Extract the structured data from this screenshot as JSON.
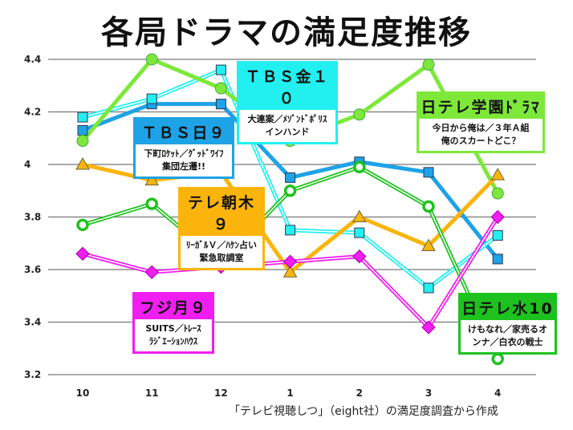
{
  "title": "各局ドラマの満足度推移",
  "source_note": "「テレビ視聴しつ」（eight社）の満足度調査から作成",
  "chart_data": {
    "type": "line",
    "title": "各局ドラマの満足度推移",
    "categories": [
      "10",
      "11",
      "12",
      "1",
      "2",
      "3",
      "4"
    ],
    "ylim": [
      3.2,
      4.4
    ],
    "yticks": [
      "3.2",
      "3.4",
      "3.6",
      "3.8",
      "4",
      "4.2",
      "4.4"
    ],
    "grid": true,
    "series": [
      {
        "name": "TBS日９",
        "note": "下町ロケット／グッドワイフ 集団左遷!!",
        "color": "#1ea3e6",
        "marker": "square",
        "values": [
          4.13,
          4.23,
          4.23,
          3.95,
          4.01,
          3.97,
          3.64
        ]
      },
      {
        "name": "TBS金１０",
        "note": "大連案／メゾン・ド・ポリス インハンド",
        "color": "#22f0f0",
        "marker": "square",
        "values": [
          4.18,
          4.25,
          4.36,
          3.75,
          3.74,
          3.53,
          3.73
        ]
      },
      {
        "name": "日テレ学園ドラマ",
        "note": "今日から俺は／３年Ａ組 俺のスカートどこ？",
        "color": "#7ee83a",
        "marker": "circle",
        "values": [
          4.09,
          4.4,
          4.29,
          4.09,
          4.19,
          4.38,
          3.89
        ]
      },
      {
        "name": "テレ朝木９",
        "note": "リーガルV／ハケン占い 緊急取調室",
        "color": "#fbb40c",
        "marker": "triangle",
        "values": [
          4.0,
          3.94,
          3.97,
          3.59,
          3.8,
          3.69,
          3.96
        ]
      },
      {
        "name": "日テレ水10",
        "note": "けもなれ／家売るオンナ／白衣の戦士",
        "color": "#1ec21e",
        "marker": "ring",
        "values": [
          3.77,
          3.85,
          3.63,
          3.9,
          3.99,
          3.84,
          3.26
        ]
      },
      {
        "name": "フジ月９",
        "note": "SUITS／トレース ラジエーションハウス",
        "color": "#f01ef0",
        "marker": "diamond",
        "values": [
          3.66,
          3.59,
          3.61,
          3.63,
          3.65,
          3.38,
          3.8
        ]
      }
    ]
  },
  "labels": {
    "tbs_sun": {
      "head": "ＴＢＳ日９",
      "l1": "下町ﾛｹｯﾄ／ｸﾞｯﾄﾞﾜｲﾌ",
      "l2": "集団左遷!!"
    },
    "tbs_fri": {
      "head": "ＴＢＳ金１０",
      "l1": "大連案／ﾒｿﾞﾝﾄﾞﾎﾟﾘｽ",
      "l2": "インハンド"
    },
    "ntv_gakuen": {
      "head": "日テレ学園ﾄﾞﾗﾏ",
      "l1": "今日から俺は／３年Ａ組",
      "l2": "俺のスカートどこ？"
    },
    "ex_thu": {
      "head": "テレ朝木９",
      "l1": "ﾘｰｶﾞﾙＶ／ﾊｹﾝ占い",
      "l2": "緊急取調室"
    },
    "ntv_wed": {
      "head": "日テレ水10",
      "l1": "けもなれ／家売るオ",
      "l2": "ンナ／白衣の戦士"
    },
    "fuji_mon": {
      "head": "フジ月９",
      "l1": "SUITS／ﾄﾚｰｽ",
      "l2": "ﾗｼﾞｴｰｼｮﾝﾊｳｽ"
    }
  }
}
